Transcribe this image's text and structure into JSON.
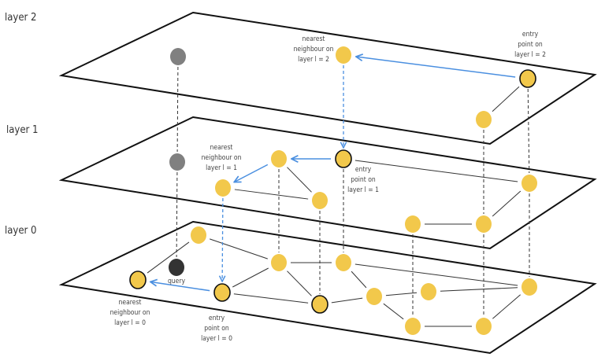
{
  "layers": [
    {
      "label": "layer 2"
    },
    {
      "label": "layer 1"
    },
    {
      "label": "layer 0"
    }
  ],
  "annotations": {
    "nn2": [
      "nearest",
      "neighbour on",
      "layer l = 2"
    ],
    "ep2": [
      "entry",
      "point on",
      "layer l = 2"
    ],
    "nn1": [
      "nearest",
      "neighbour on",
      "layer l = 1"
    ],
    "ep1": [
      "entry",
      "point on",
      "layer l = 1"
    ],
    "nn0": [
      "nearest",
      "neighbour on",
      "layer l = 0"
    ],
    "ep0": [
      "entry",
      "point on",
      "layer l = 0"
    ],
    "query": "query"
  },
  "colors": {
    "node": "#F2C84B",
    "inactive_node": "#808080",
    "query_node": "#333333",
    "search_path": "#4A8FE0",
    "edge": "#333333"
  }
}
